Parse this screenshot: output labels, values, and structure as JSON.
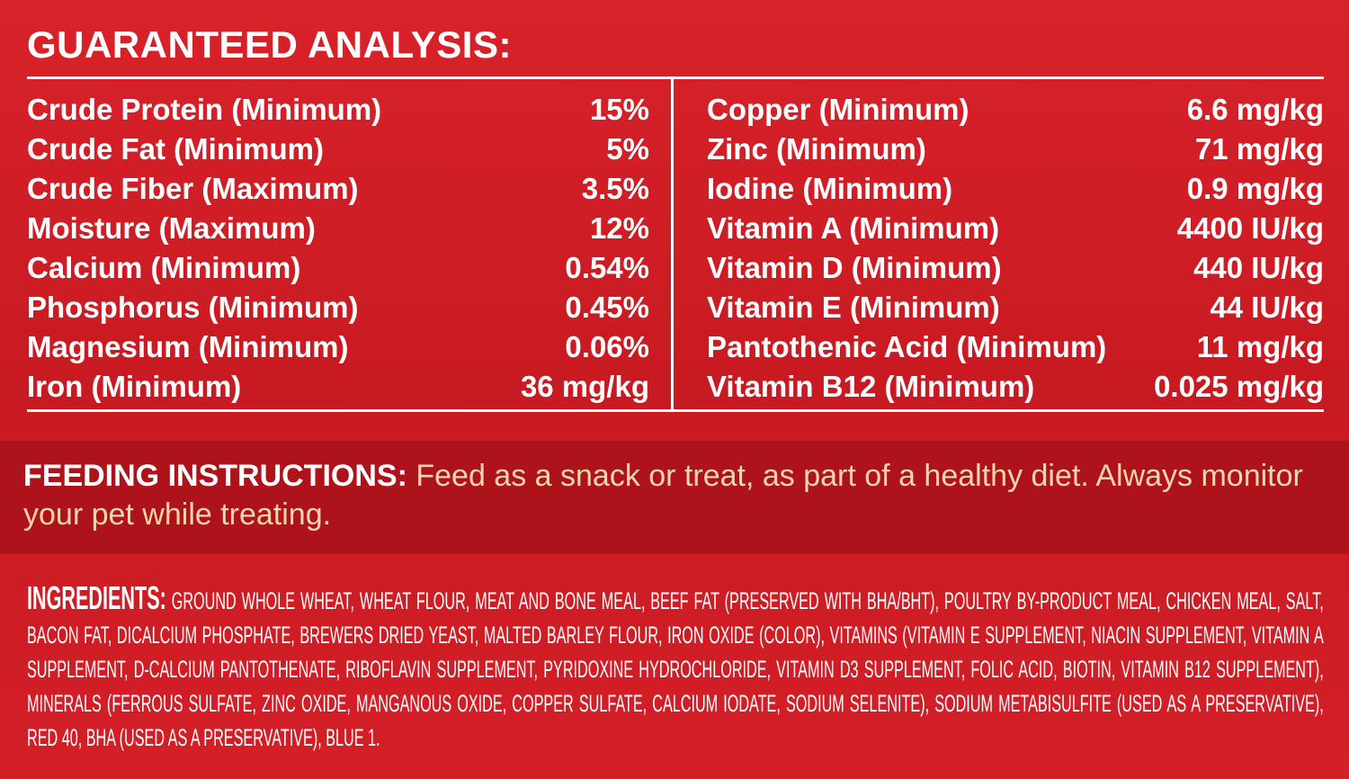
{
  "analysis": {
    "title": "GUARANTEED ANALYSIS:",
    "left": [
      {
        "name": "Crude Protein (Minimum)",
        "value": "15%"
      },
      {
        "name": "Crude Fat (Minimum)",
        "value": "5%"
      },
      {
        "name": "Crude Fiber (Maximum)",
        "value": "3.5%"
      },
      {
        "name": "Moisture (Maximum)",
        "value": "12%"
      },
      {
        "name": "Calcium (Minimum)",
        "value": "0.54%"
      },
      {
        "name": "Phosphorus (Minimum)",
        "value": "0.45%"
      },
      {
        "name": "Magnesium (Minimum)",
        "value": "0.06%"
      },
      {
        "name": "Iron (Minimum)",
        "value": "36 mg/kg"
      }
    ],
    "right": [
      {
        "name": "Copper (Minimum)",
        "value": "6.6 mg/kg"
      },
      {
        "name": "Zinc (Minimum)",
        "value": "71 mg/kg"
      },
      {
        "name": "Iodine (Minimum)",
        "value": "0.9 mg/kg"
      },
      {
        "name": "Vitamin A (Minimum)",
        "value": "4400 IU/kg"
      },
      {
        "name": "Vitamin D (Minimum)",
        "value": "440 IU/kg"
      },
      {
        "name": "Vitamin E (Minimum)",
        "value": "44 IU/kg"
      },
      {
        "name": "Pantothenic Acid (Minimum)",
        "value": "11 mg/kg"
      },
      {
        "name": "Vitamin B12 (Minimum)",
        "value": "0.025 mg/kg"
      }
    ]
  },
  "feeding": {
    "label": "FEEDING INSTRUCTIONS:",
    "text": "Feed as a snack or treat, as part of a healthy diet. Always monitor your pet while treating."
  },
  "ingredients": {
    "label": "INGREDIENTS:",
    "text": "GROUND WHOLE WHEAT, WHEAT FLOUR, MEAT AND BONE MEAL, BEEF FAT (PRESERVED WITH BHA/BHT), POULTRY BY-PRODUCT MEAL, CHICKEN MEAL, SALT, BACON FAT, DICALCIUM PHOSPHATE, BREWERS DRIED YEAST, MALTED BARLEY FLOUR, IRON OXIDE (COLOR), VITAMINS (VITAMIN E SUPPLEMENT, NIACIN SUPPLEMENT, VITAMIN A SUPPLEMENT, D-CALCIUM PANTOTHENATE, RIBOFLAVIN SUPPLEMENT, PYRIDOXINE HYDROCHLORIDE, VITAMIN D3 SUPPLEMENT, FOLIC ACID, BIOTIN, VITAMIN B12 SUPPLEMENT), MINERALS (FERROUS SULFATE, ZINC OXIDE, MANGANOUS OXIDE, COPPER SULFATE, CALCIUM IODATE, SODIUM SELENITE), SODIUM METABISULFITE (USED AS A PRESERVATIVE), RED 40, BHA (USED AS A PRESERVATIVE), BLUE 1."
  }
}
